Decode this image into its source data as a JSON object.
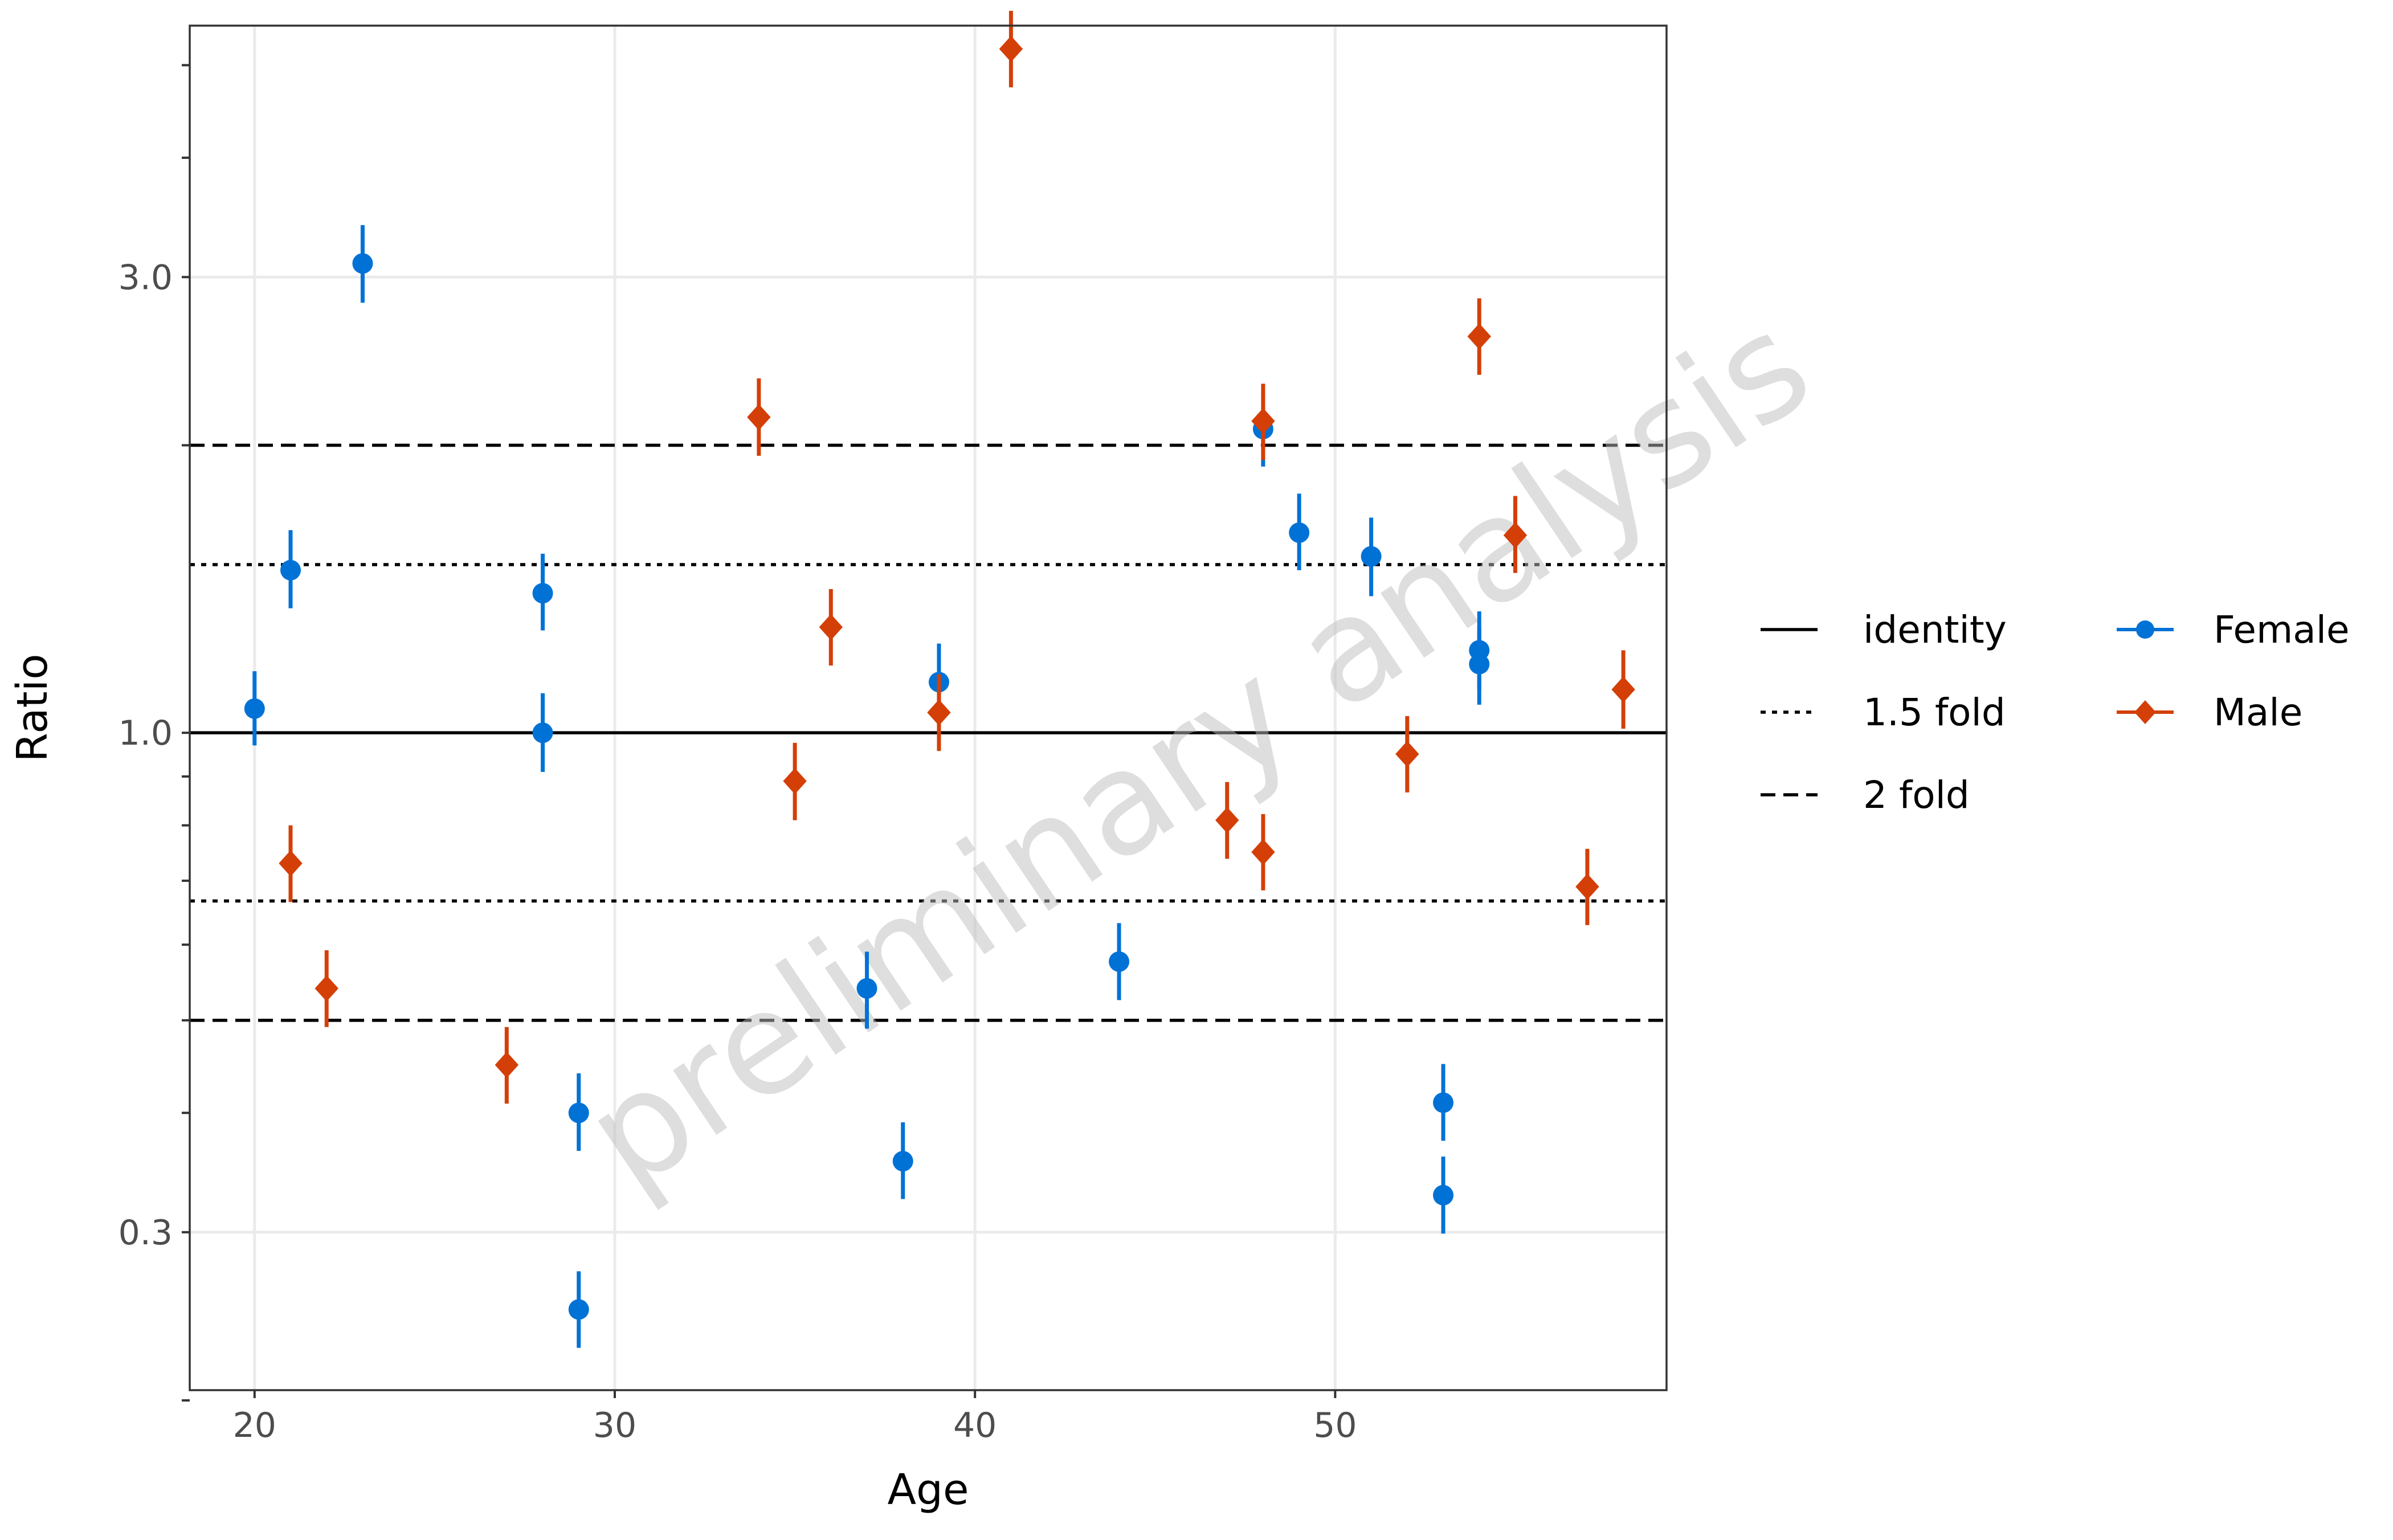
{
  "chart_data": {
    "type": "scatter",
    "xlabel": "Age",
    "ylabel": "Ratio",
    "y_scale": "log",
    "xlim": [
      18.2,
      59.2
    ],
    "ylim": [
      0.205,
      5.5
    ],
    "x_ticks": [
      20,
      30,
      40,
      50
    ],
    "y_ticks": [
      0.3,
      1.0,
      3.0
    ],
    "y_tick_labels": [
      "0.3",
      "1.0",
      "3.0"
    ],
    "y_minor_ticks": [
      0.2,
      0.4,
      0.5,
      0.6,
      0.7,
      0.8,
      0.9,
      2,
      4,
      5
    ],
    "grid": true,
    "watermark": "preliminary analysis",
    "colors": {
      "Female": "#0072D6",
      "Male": "#D43F08"
    },
    "reference_lines": [
      {
        "label": "identity",
        "style": "solid",
        "values": [
          1.0
        ]
      },
      {
        "label": "1.5 fold",
        "style": "dotted",
        "values": [
          0.6667,
          1.5
        ]
      },
      {
        "label": "2 fold",
        "style": "dashed",
        "values": [
          0.5,
          2.0
        ]
      }
    ],
    "legend_position": "right",
    "series": [
      {
        "name": "Female",
        "marker": "circle",
        "points": [
          {
            "x": 20,
            "y": 1.06,
            "lo": 0.97,
            "hi": 1.16
          },
          {
            "x": 21,
            "y": 1.48,
            "lo": 1.35,
            "hi": 1.63
          },
          {
            "x": 23,
            "y": 3.1,
            "lo": 2.82,
            "hi": 3.4
          },
          {
            "x": 28,
            "y": 1.4,
            "lo": 1.28,
            "hi": 1.54
          },
          {
            "x": 28,
            "y": 1.0,
            "lo": 0.91,
            "hi": 1.1
          },
          {
            "x": 29,
            "y": 0.4,
            "lo": 0.365,
            "hi": 0.44
          },
          {
            "x": 29,
            "y": 0.249,
            "lo": 0.227,
            "hi": 0.273
          },
          {
            "x": 37,
            "y": 0.54,
            "lo": 0.49,
            "hi": 0.59
          },
          {
            "x": 38,
            "y": 0.356,
            "lo": 0.325,
            "hi": 0.391
          },
          {
            "x": 39,
            "y": 1.13,
            "lo": 1.03,
            "hi": 1.24
          },
          {
            "x": 44,
            "y": 0.576,
            "lo": 0.525,
            "hi": 0.632
          },
          {
            "x": 48,
            "y": 2.08,
            "lo": 1.9,
            "hi": 2.28
          },
          {
            "x": 49,
            "y": 1.62,
            "lo": 1.48,
            "hi": 1.78
          },
          {
            "x": 51,
            "y": 1.53,
            "lo": 1.39,
            "hi": 1.68
          },
          {
            "x": 53,
            "y": 0.41,
            "lo": 0.374,
            "hi": 0.45
          },
          {
            "x": 53,
            "y": 0.328,
            "lo": 0.299,
            "hi": 0.36
          },
          {
            "x": 54,
            "y": 1.22,
            "lo": 1.11,
            "hi": 1.34
          },
          {
            "x": 54,
            "y": 1.18,
            "lo": 1.07,
            "hi": 1.29
          }
        ]
      },
      {
        "name": "Male",
        "marker": "diamond",
        "points": [
          {
            "x": 21,
            "y": 0.73,
            "lo": 0.665,
            "hi": 0.8
          },
          {
            "x": 22,
            "y": 0.54,
            "lo": 0.492,
            "hi": 0.592
          },
          {
            "x": 27,
            "y": 0.449,
            "lo": 0.409,
            "hi": 0.492
          },
          {
            "x": 34,
            "y": 2.14,
            "lo": 1.95,
            "hi": 2.35
          },
          {
            "x": 35,
            "y": 0.89,
            "lo": 0.81,
            "hi": 0.976
          },
          {
            "x": 36,
            "y": 1.29,
            "lo": 1.176,
            "hi": 1.414
          },
          {
            "x": 39,
            "y": 1.05,
            "lo": 0.957,
            "hi": 1.151
          },
          {
            "x": 41,
            "y": 5.2,
            "lo": 4.74,
            "hi": 5.7
          },
          {
            "x": 47,
            "y": 0.81,
            "lo": 0.738,
            "hi": 0.888
          },
          {
            "x": 48,
            "y": 0.75,
            "lo": 0.684,
            "hi": 0.822
          },
          {
            "x": 48,
            "y": 2.12,
            "lo": 1.93,
            "hi": 2.32
          },
          {
            "x": 52,
            "y": 0.95,
            "lo": 0.866,
            "hi": 1.041
          },
          {
            "x": 54,
            "y": 2.6,
            "lo": 2.37,
            "hi": 2.85
          },
          {
            "x": 55,
            "y": 1.61,
            "lo": 1.47,
            "hi": 1.77
          },
          {
            "x": 57,
            "y": 0.69,
            "lo": 0.629,
            "hi": 0.756
          },
          {
            "x": 58,
            "y": 1.11,
            "lo": 1.01,
            "hi": 1.22
          }
        ]
      }
    ]
  }
}
